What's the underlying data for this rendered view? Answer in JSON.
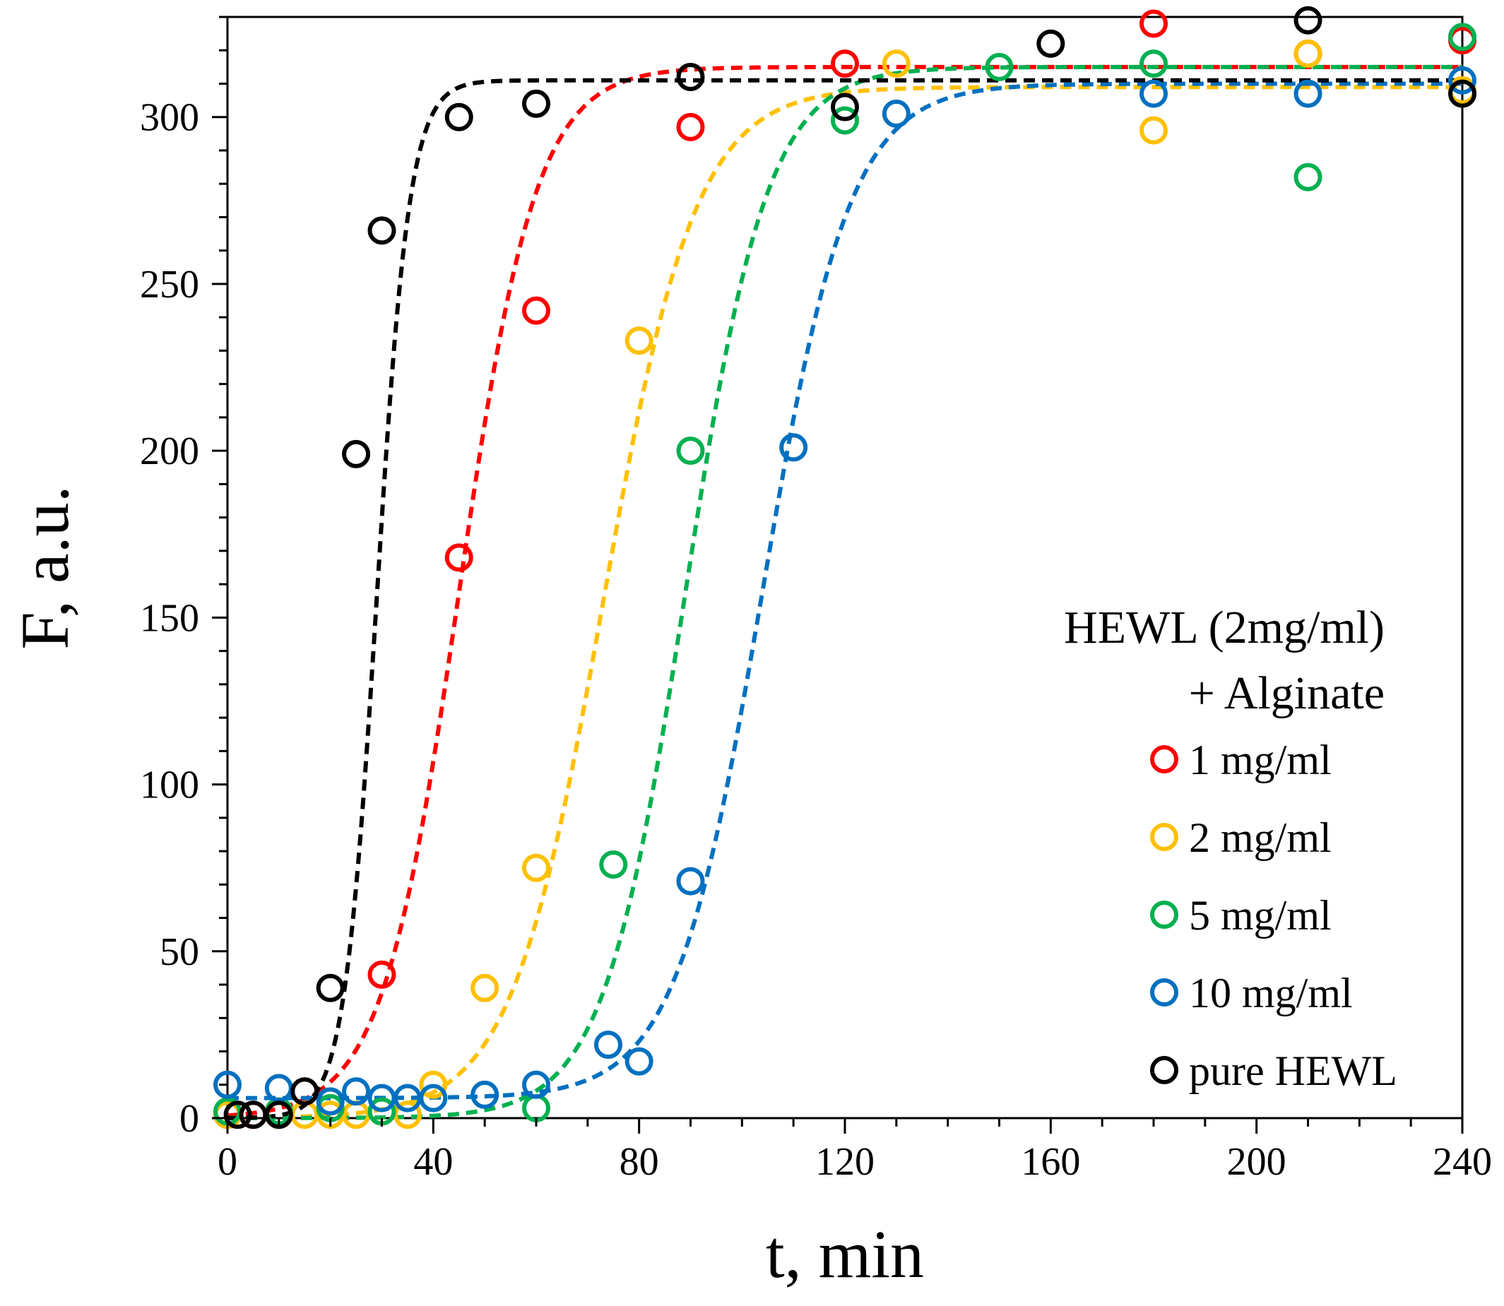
{
  "chart_data": {
    "type": "scatter",
    "title": "",
    "xlabel": "t, min",
    "ylabel": "F, a.u.",
    "xlim": [
      0,
      240
    ],
    "ylim": [
      0,
      330
    ],
    "xticks": [
      0,
      40,
      80,
      120,
      160,
      200,
      240
    ],
    "yticks": [
      0,
      50,
      100,
      150,
      200,
      250,
      300
    ],
    "x_minor_step": 10,
    "y_minor_step": 10,
    "legend": {
      "placement": "right",
      "title_line1": "HEWL (2mg/ml)",
      "title_line2": "+ Alginate"
    },
    "series": [
      {
        "name": "1 mg/ml",
        "color": "#ff0000",
        "x": [
          0,
          5,
          10,
          15,
          30,
          45,
          60,
          90,
          120,
          180,
          210,
          240
        ],
        "y": [
          1,
          1,
          1,
          8,
          43,
          168,
          242,
          297,
          316,
          328,
          319,
          323
        ],
        "fit": {
          "base": 0,
          "top": 315,
          "t50": 45,
          "k": 7.5
        }
      },
      {
        "name": "2 mg/ml",
        "color": "#ffc000",
        "x": [
          0,
          10,
          15,
          20,
          25,
          30,
          35,
          40,
          50,
          60,
          80,
          130,
          180,
          210,
          240
        ],
        "y": [
          1,
          1,
          1,
          1,
          1,
          2,
          1,
          10,
          39,
          75,
          233,
          316,
          296,
          319,
          308
        ],
        "fit": {
          "base": 0,
          "top": 309,
          "t50": 73,
          "k": 9
        }
      },
      {
        "name": "5 mg/ml",
        "color": "#00b050",
        "x": [
          0,
          10,
          20,
          30,
          60,
          75,
          90,
          120,
          150,
          180,
          210,
          240
        ],
        "y": [
          2,
          2,
          3,
          2,
          3,
          76,
          200,
          299,
          315,
          316,
          282,
          324
        ],
        "fit": {
          "base": 0,
          "top": 315,
          "t50": 89,
          "k": 8
        }
      },
      {
        "name": "10 mg/ml",
        "color": "#0070c0",
        "x": [
          0,
          10,
          20,
          25,
          30,
          35,
          40,
          50,
          60,
          74,
          80,
          90,
          110,
          130,
          180,
          210,
          240
        ],
        "y": [
          10,
          9,
          5,
          8,
          6,
          6,
          6,
          7,
          10,
          22,
          17,
          71,
          201,
          301,
          307,
          307,
          311
        ],
        "fit": {
          "base": 6,
          "top": 310,
          "t50": 104,
          "k": 8.5
        }
      },
      {
        "name": "pure HEWL",
        "color": "#000000",
        "x": [
          2,
          5,
          10,
          15,
          20,
          25,
          30,
          45,
          60,
          90,
          120,
          160,
          210,
          240
        ],
        "y": [
          1,
          1,
          1,
          8,
          39,
          199,
          266,
          300,
          304,
          312,
          303,
          322,
          329,
          307
        ],
        "fit": {
          "base": 0,
          "top": 311,
          "t50": 29,
          "k": 3.2
        }
      }
    ]
  }
}
